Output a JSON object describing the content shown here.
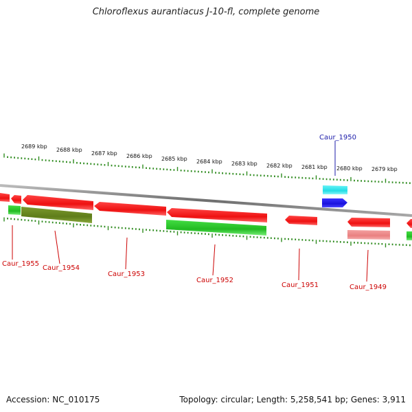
{
  "title": "Chloroflexus aurantiacus J-10-fl, complete genome",
  "footer": {
    "accession": "Accession: NC_010175",
    "topology": "Topology: circular; Length: 5,258,541 bp; Genes: 3,911"
  },
  "colors": {
    "backbone": "#8a8a8a",
    "tick": "#2e8b1e",
    "gene_red": "#ee1111",
    "gene_green": "#2ecc2e",
    "gene_olive": "#6b8a22",
    "gene_cyan": "#2ee0e8",
    "gene_blue": "#1a12dd",
    "gene_pink": "#ee8888",
    "label_red": "#cc0000",
    "label_blue": "#1a1aa8"
  },
  "kbp_labels": [
    "2689 kbp",
    "2688 kbp",
    "2687 kbp",
    "2686 kbp",
    "2685 kbp",
    "2684 kbp",
    "2683 kbp",
    "2682 kbp",
    "2681 kbp",
    "2680 kbp",
    "2679 kbp"
  ],
  "gene_labels": [
    {
      "name": "Caur_1955",
      "color": "red"
    },
    {
      "name": "Caur_1954",
      "color": "red"
    },
    {
      "name": "Caur_1953",
      "color": "red"
    },
    {
      "name": "Caur_1952",
      "color": "red"
    },
    {
      "name": "Caur_1951",
      "color": "red"
    },
    {
      "name": "Caur_1950",
      "color": "blue"
    },
    {
      "name": "Caur_1949",
      "color": "red"
    }
  ]
}
